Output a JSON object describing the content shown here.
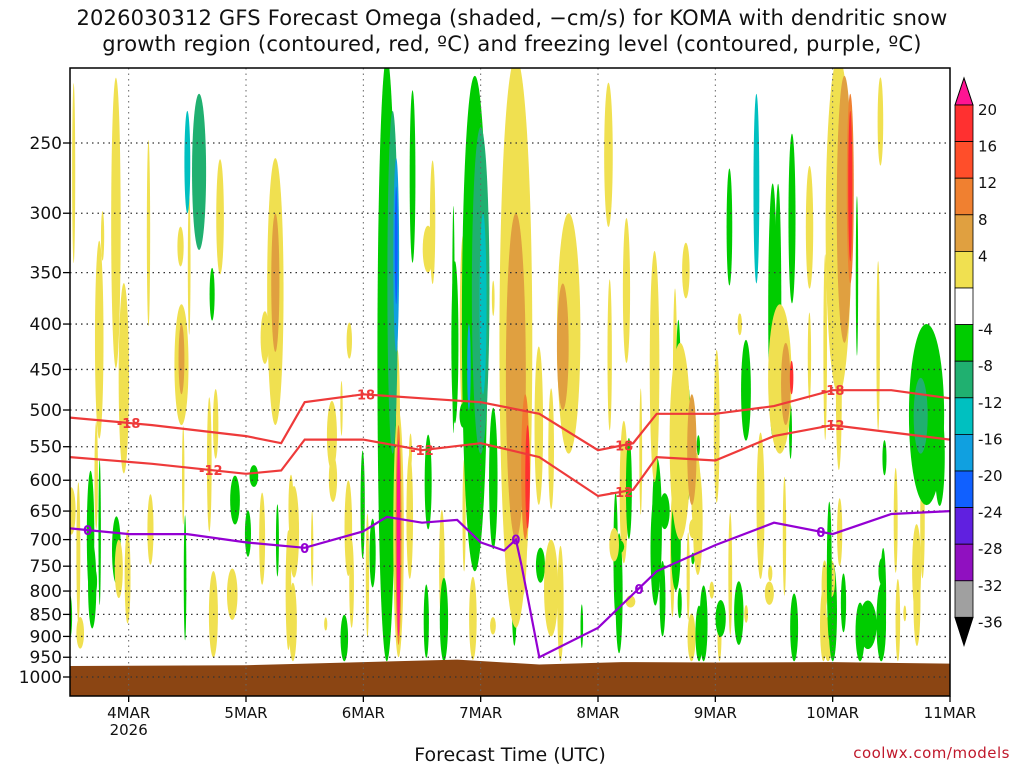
{
  "title_line1": "2026030312 GFS Forecast Omega (shaded, −cm/s) for KOMA with dendritic snow",
  "title_line2": "growth region (contoured, red, ºC) and freezing level (contoured, purple, ºC)",
  "credit": "coolwx.com/models",
  "colors": {
    "ground": "#8b4513",
    "snow_growth_contour": "#ee3a3a",
    "freezing_contour": "#9400d3",
    "grid": "#555555"
  },
  "chart_data": {
    "type": "heatmap",
    "xlabel": "Forecast Time (UTC)",
    "ylabel": "",
    "x_ticks": [
      "4MAR\n2026",
      "5MAR",
      "6MAR",
      "7MAR",
      "8MAR",
      "9MAR",
      "10MAR",
      "11MAR"
    ],
    "x_range_days": [
      3.5,
      11.0
    ],
    "y_ticks": [
      250,
      300,
      350,
      400,
      450,
      500,
      550,
      600,
      650,
      700,
      750,
      800,
      850,
      900,
      950,
      1000
    ],
    "y_range_hpa": [
      200,
      1050
    ],
    "y_scale": "log-pressure",
    "grid": true,
    "colorbar": {
      "labels": [
        20,
        16,
        12,
        8,
        4,
        -4,
        -8,
        -12,
        -16,
        -20,
        -24,
        -28,
        -32,
        -36
      ],
      "colors": [
        "#ff1493",
        "#ff3030",
        "#ff4e2a",
        "#f08030",
        "#e0a040",
        "#f0e050",
        "#ffffff",
        "#00cc00",
        "#20b070",
        "#00c0c0",
        "#10a0e0",
        "#1060ff",
        "#6020e0",
        "#9010c0",
        "#a0a0a0",
        "#000000"
      ]
    },
    "features": [
      {
        "name": "strong_rising",
        "day": 6.3,
        "p_top": 500,
        "p_bottom": 930,
        "value": 20
      },
      {
        "name": "strong_rising",
        "day": 7.35,
        "p_top": 520,
        "p_bottom": 680,
        "value": 16
      },
      {
        "name": "strong_rising",
        "day": 10.15,
        "p_top": 220,
        "p_bottom": 350,
        "value": 16
      },
      {
        "name": "sinking",
        "day": 6.28,
        "p_top": 250,
        "p_bottom": 420,
        "value": -20
      },
      {
        "name": "sinking",
        "day": 7.0,
        "p_top": 260,
        "p_bottom": 500,
        "value": -16
      }
    ],
    "contours": [
      {
        "name": "-18",
        "color": "red",
        "x": [
          3.5,
          4.2,
          5.0,
          5.3,
          5.5,
          6.0,
          6.5,
          7.0,
          7.5,
          8.0,
          8.3,
          8.5,
          9.0,
          9.5,
          10.0,
          10.5,
          11.0
        ],
        "p": [
          510,
          520,
          535,
          545,
          490,
          480,
          485,
          490,
          505,
          555,
          545,
          505,
          505,
          495,
          475,
          475,
          485
        ]
      },
      {
        "name": "-12",
        "color": "red",
        "x": [
          3.5,
          4.2,
          5.0,
          5.3,
          5.5,
          6.0,
          6.5,
          7.0,
          7.5,
          8.0,
          8.3,
          8.5,
          9.0,
          9.5,
          10.0,
          10.5,
          11.0
        ],
        "p": [
          565,
          575,
          590,
          585,
          540,
          540,
          555,
          545,
          565,
          625,
          615,
          565,
          570,
          535,
          520,
          530,
          540
        ]
      },
      {
        "name": "0",
        "color": "purple",
        "x": [
          3.5,
          4.0,
          4.5,
          5.0,
          5.5,
          6.0,
          6.2,
          6.5,
          6.8,
          7.0,
          7.2,
          7.3,
          7.35,
          7.5,
          8.0,
          8.5,
          9.0,
          9.5,
          10.0,
          10.5,
          11.0
        ],
        "p": [
          680,
          690,
          690,
          705,
          715,
          685,
          660,
          670,
          665,
          705,
          720,
          700,
          750,
          950,
          880,
          760,
          710,
          670,
          690,
          655,
          650
        ]
      }
    ],
    "contour_labels": [
      "-18",
      "-12",
      "0"
    ]
  }
}
